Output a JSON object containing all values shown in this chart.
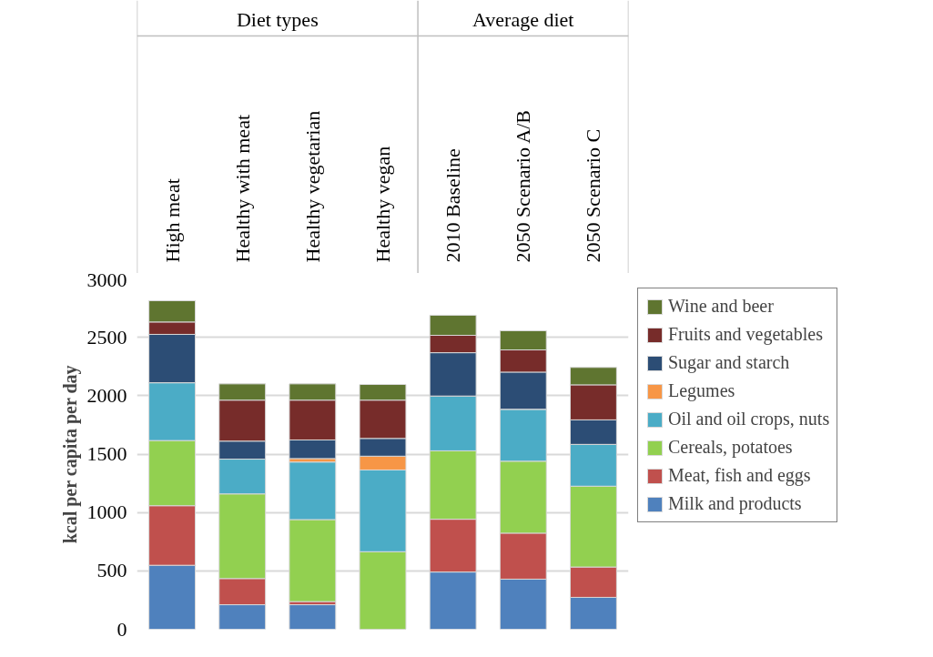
{
  "chart_data": {
    "type": "bar",
    "stacked": true,
    "ylabel": "kcal per capita per day",
    "categories": [
      "High meat",
      "Healthy with meat",
      "Healthy vegetarian",
      "Healthy vegan",
      "2010 Baseline",
      "2050 Scenario A/B",
      "2050 Scenario C"
    ],
    "annotations": [
      "Diet types",
      "Average diet"
    ],
    "series": [
      {
        "name": "Milk and products",
        "color": "#4f81bd",
        "values": [
          548,
          210,
          210,
          0,
          490,
          429,
          273
        ]
      },
      {
        "name": "Meat, fish and eggs",
        "color": "#c0504d",
        "values": [
          510,
          224,
          27,
          0,
          452,
          394,
          260
        ]
      },
      {
        "name": "Cereals, potatoes",
        "color": "#92d050",
        "values": [
          558,
          725,
          702,
          664,
          586,
          616,
          692
        ]
      },
      {
        "name": "Oil and oil crops, nuts",
        "color": "#4bacc6",
        "values": [
          495,
          298,
          493,
          700,
          469,
          445,
          358
        ]
      },
      {
        "name": "Legumes",
        "color": "#f79646",
        "values": [
          0,
          0,
          30,
          118,
          0,
          null,
          0
        ]
      },
      {
        "name": "Sugar and starch",
        "color": "#2c4d75",
        "values": [
          414,
          154,
          159,
          152,
          371,
          318,
          210
        ]
      },
      {
        "name": "Fruits and vegetables",
        "color": "#772c2a",
        "values": [
          106,
          351,
          341,
          328,
          149,
          190,
          300
        ]
      },
      {
        "name": "Wine and beer",
        "color": "#5f7530",
        "values": [
          182,
          139,
          139,
          134,
          172,
          164,
          149
        ]
      }
    ],
    "ylim": [
      0,
      3000
    ],
    "yticks": [
      0,
      500,
      1000,
      1500,
      2000,
      2500,
      3000
    ],
    "grid": "y",
    "legend": "right"
  }
}
